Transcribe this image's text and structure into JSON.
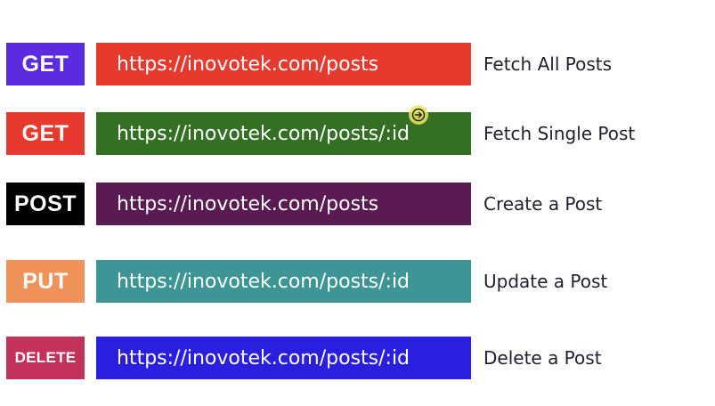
{
  "routes": [
    {
      "method": "GET",
      "method_color": "#5b2be0",
      "url": "https://inovotek.com/posts",
      "url_color": "#e63a2e",
      "description": "Fetch All Posts"
    },
    {
      "method": "GET",
      "method_color": "#e63a2e",
      "url": "https://inovotek.com/posts/:id",
      "url_color": "#347024",
      "description": "Fetch Single Post"
    },
    {
      "method": "POST",
      "method_color": "#000000",
      "url": "https://inovotek.com/posts",
      "url_color": "#5a1a52",
      "description": "Create a Post"
    },
    {
      "method": "PUT",
      "method_color": "#f0935a",
      "url": "https://inovotek.com/posts/:id",
      "url_color": "#3d9596",
      "description": "Update a Post"
    },
    {
      "method": "DELETE",
      "method_color": "#c2325a",
      "url": "https://inovotek.com/posts/:id",
      "url_color": "#2a1edf",
      "description": "Delete a Post"
    }
  ],
  "cursor": {
    "icon": "arrow-right-circle-icon",
    "color": "#ece85a"
  }
}
